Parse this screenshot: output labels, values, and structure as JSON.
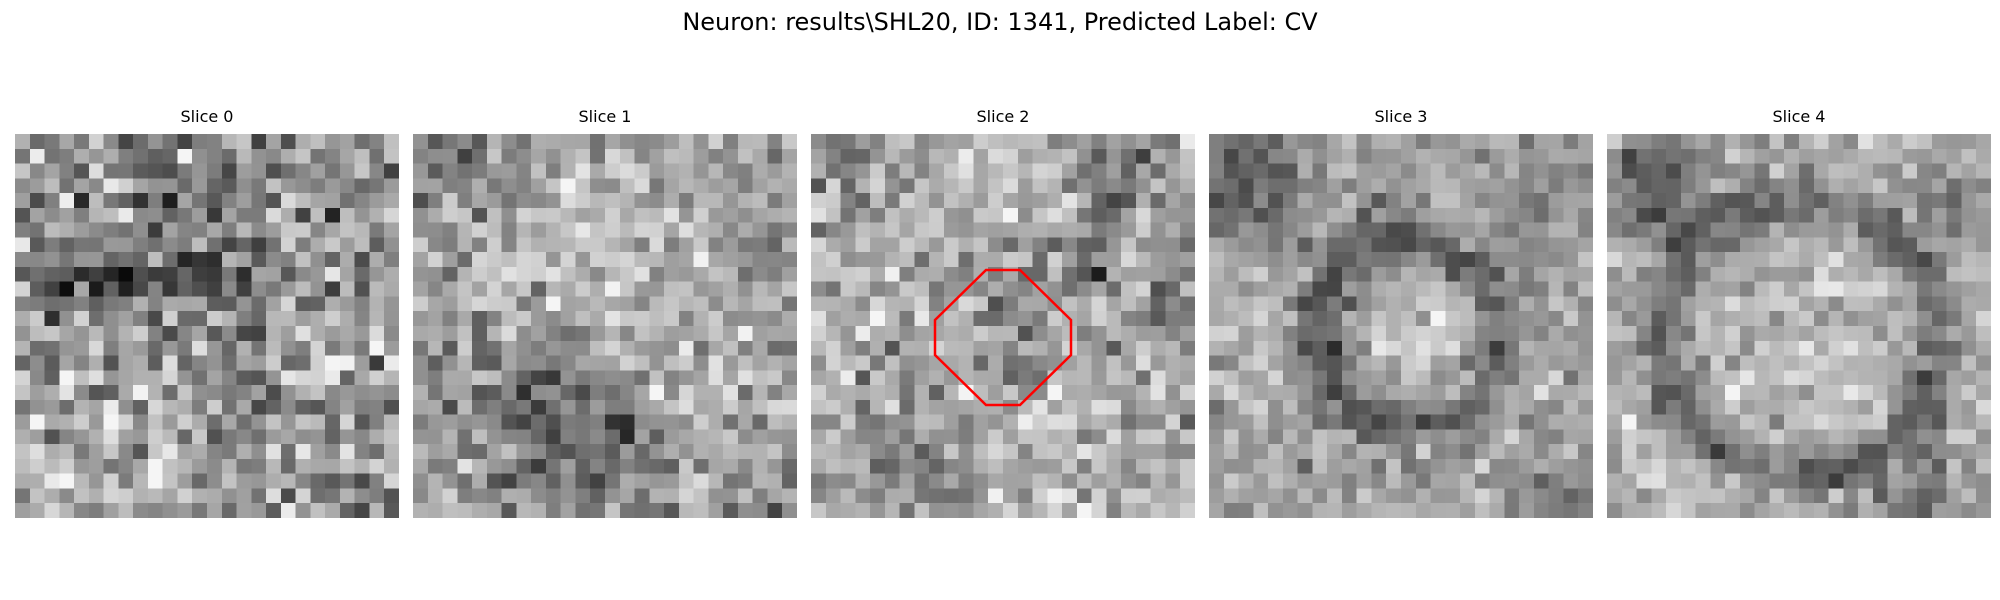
{
  "figure": {
    "title": "Neuron: results\\SHL20, ID: 1341, Predicted Label: CV"
  },
  "slices": [
    {
      "label": "Slice 0",
      "pattern": "noise-dark-band"
    },
    {
      "label": "Slice 1",
      "pattern": "bright-blob-dark-lower"
    },
    {
      "label": "Slice 2",
      "pattern": "ring-with-roi"
    },
    {
      "label": "Slice 3",
      "pattern": "dark-ring-bright-core"
    },
    {
      "label": "Slice 4",
      "pattern": "large-dark-ring"
    }
  ],
  "roi": {
    "slice_index": 2,
    "shape": "octagon",
    "color": "#ff0000"
  },
  "colors": {
    "background": "#ffffff",
    "colormap": "gray"
  }
}
